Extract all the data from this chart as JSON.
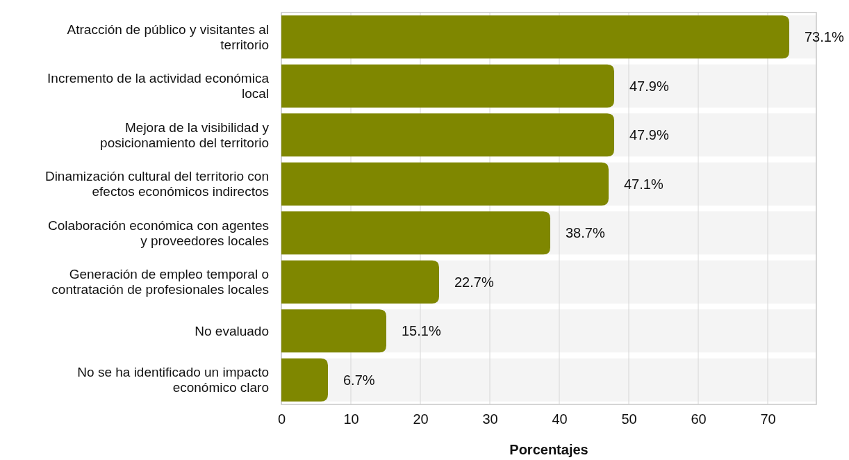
{
  "chart_data": {
    "type": "bar",
    "orientation": "horizontal",
    "xlabel": "Porcentajes",
    "categories": [
      "Atracción de público y visitantes al territorio",
      "Incremento de la actividad económica local",
      "Mejora de la visibilidad y posicionamiento del territorio",
      "Dinamización cultural del territorio con efectos económicos indirectos",
      "Colaboración económica con agentes y proveedores locales",
      "Generación de empleo temporal o contratación de profesionales locales",
      "No evaluado",
      "No se ha identificado un impacto económico claro"
    ],
    "series": [
      {
        "color": "#7f8700",
        "values": [
          73.1,
          47.9,
          47.9,
          47.1,
          38.7,
          22.7,
          15.1,
          6.7
        ]
      }
    ],
    "value_labels": [
      "73.1%",
      "47.9%",
      "47.9%",
      "47.1%",
      "38.7%",
      "22.7%",
      "15.1%",
      "6.7%"
    ],
    "xlim": [
      0,
      77
    ],
    "xticks": [
      0,
      10,
      20,
      30,
      40,
      50,
      60,
      70
    ],
    "grid": "x"
  }
}
